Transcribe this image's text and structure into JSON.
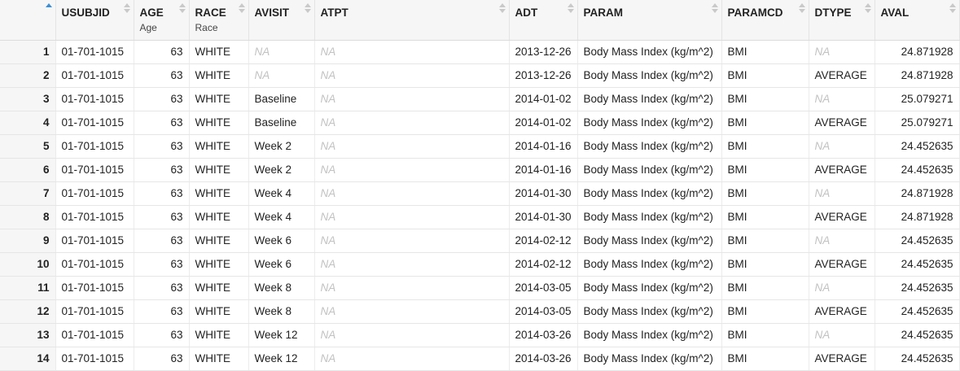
{
  "columns": [
    {
      "name": "",
      "label": ""
    },
    {
      "name": "USUBJID",
      "label": ""
    },
    {
      "name": "AGE",
      "label": "Age"
    },
    {
      "name": "RACE",
      "label": "Race"
    },
    {
      "name": "AVISIT",
      "label": ""
    },
    {
      "name": "ATPT",
      "label": ""
    },
    {
      "name": "ADT",
      "label": ""
    },
    {
      "name": "PARAM",
      "label": ""
    },
    {
      "name": "PARAMCD",
      "label": ""
    },
    {
      "name": "DTYPE",
      "label": ""
    },
    {
      "name": "AVAL",
      "label": ""
    }
  ],
  "rows": [
    [
      "1",
      "01-701-1015",
      "63",
      "WHITE",
      "NA",
      "NA",
      "2013-12-26",
      "Body Mass Index (kg/m^2)",
      "BMI",
      "NA",
      "24.871928"
    ],
    [
      "2",
      "01-701-1015",
      "63",
      "WHITE",
      "NA",
      "NA",
      "2013-12-26",
      "Body Mass Index (kg/m^2)",
      "BMI",
      "AVERAGE",
      "24.871928"
    ],
    [
      "3",
      "01-701-1015",
      "63",
      "WHITE",
      "Baseline",
      "NA",
      "2014-01-02",
      "Body Mass Index (kg/m^2)",
      "BMI",
      "NA",
      "25.079271"
    ],
    [
      "4",
      "01-701-1015",
      "63",
      "WHITE",
      "Baseline",
      "NA",
      "2014-01-02",
      "Body Mass Index (kg/m^2)",
      "BMI",
      "AVERAGE",
      "25.079271"
    ],
    [
      "5",
      "01-701-1015",
      "63",
      "WHITE",
      "Week 2",
      "NA",
      "2014-01-16",
      "Body Mass Index (kg/m^2)",
      "BMI",
      "NA",
      "24.452635"
    ],
    [
      "6",
      "01-701-1015",
      "63",
      "WHITE",
      "Week 2",
      "NA",
      "2014-01-16",
      "Body Mass Index (kg/m^2)",
      "BMI",
      "AVERAGE",
      "24.452635"
    ],
    [
      "7",
      "01-701-1015",
      "63",
      "WHITE",
      "Week 4",
      "NA",
      "2014-01-30",
      "Body Mass Index (kg/m^2)",
      "BMI",
      "NA",
      "24.871928"
    ],
    [
      "8",
      "01-701-1015",
      "63",
      "WHITE",
      "Week 4",
      "NA",
      "2014-01-30",
      "Body Mass Index (kg/m^2)",
      "BMI",
      "AVERAGE",
      "24.871928"
    ],
    [
      "9",
      "01-701-1015",
      "63",
      "WHITE",
      "Week 6",
      "NA",
      "2014-02-12",
      "Body Mass Index (kg/m^2)",
      "BMI",
      "NA",
      "24.452635"
    ],
    [
      "10",
      "01-701-1015",
      "63",
      "WHITE",
      "Week 6",
      "NA",
      "2014-02-12",
      "Body Mass Index (kg/m^2)",
      "BMI",
      "AVERAGE",
      "24.452635"
    ],
    [
      "11",
      "01-701-1015",
      "63",
      "WHITE",
      "Week 8",
      "NA",
      "2014-03-05",
      "Body Mass Index (kg/m^2)",
      "BMI",
      "NA",
      "24.452635"
    ],
    [
      "12",
      "01-701-1015",
      "63",
      "WHITE",
      "Week 8",
      "NA",
      "2014-03-05",
      "Body Mass Index (kg/m^2)",
      "BMI",
      "AVERAGE",
      "24.452635"
    ],
    [
      "13",
      "01-701-1015",
      "63",
      "WHITE",
      "Week 12",
      "NA",
      "2014-03-26",
      "Body Mass Index (kg/m^2)",
      "BMI",
      "NA",
      "24.452635"
    ],
    [
      "14",
      "01-701-1015",
      "63",
      "WHITE",
      "Week 12",
      "NA",
      "2014-03-26",
      "Body Mass Index (kg/m^2)",
      "BMI",
      "AVERAGE",
      "24.452635"
    ]
  ],
  "na_value": "NA",
  "sort_icon": "sort-arrows-icon",
  "active_sort_color": "#3b8fd6"
}
